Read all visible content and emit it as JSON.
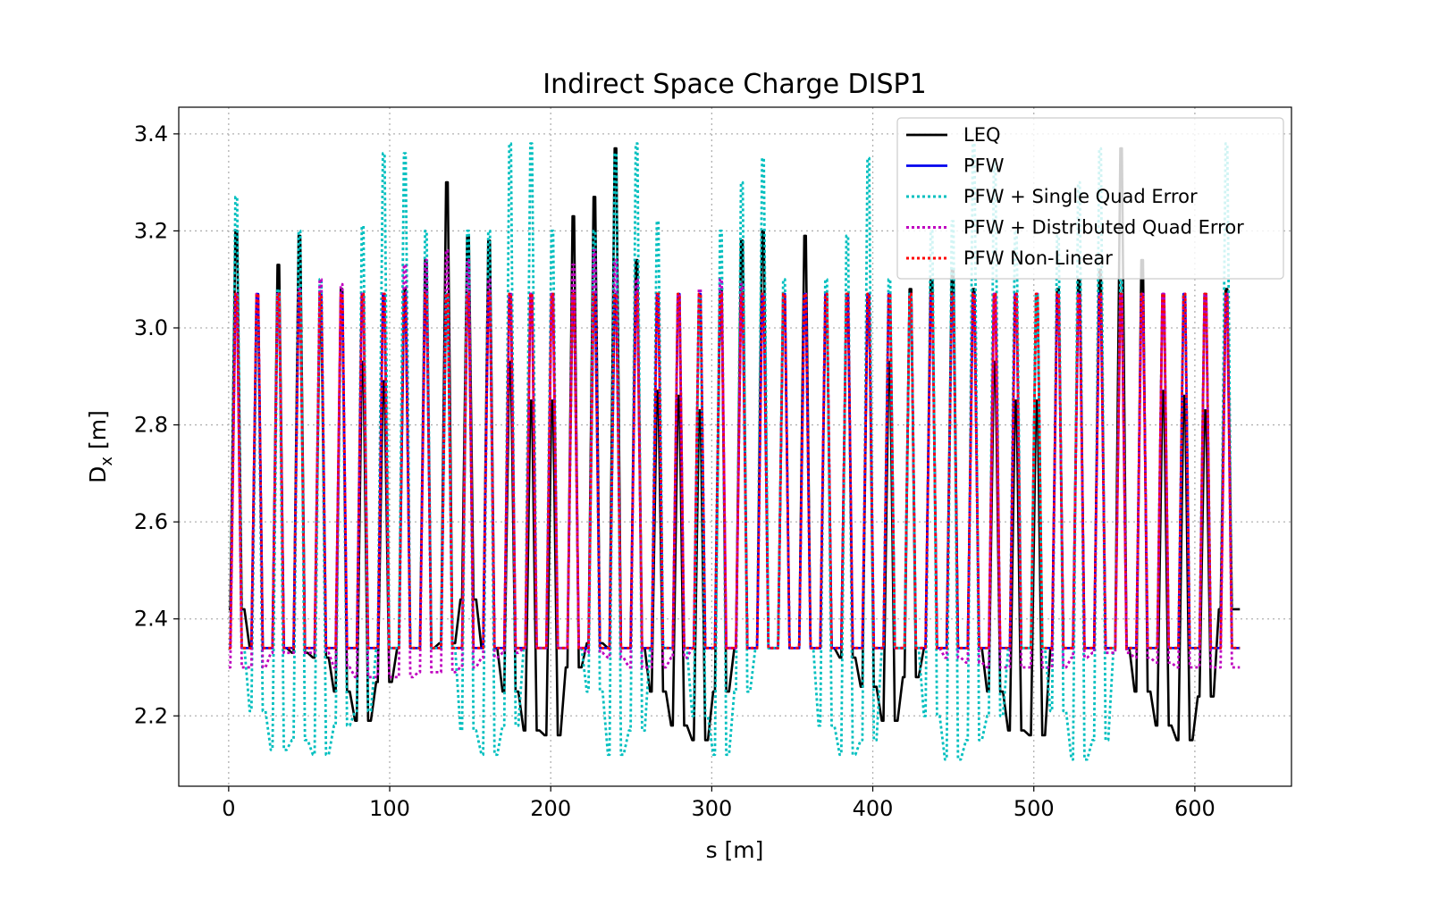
{
  "chart_data": {
    "type": "line",
    "title": "Indirect Space Charge DISP1",
    "xlabel": "s [m]",
    "ylabel_main": "D",
    "ylabel_sub": "x",
    "ylabel_unit": "[m]",
    "xlim": [
      -31,
      660
    ],
    "ylim": [
      2.055,
      3.455
    ],
    "xticks": [
      0,
      100,
      200,
      300,
      400,
      500,
      600
    ],
    "yticks": [
      2.2,
      2.4,
      2.6,
      2.8,
      3.0,
      3.2,
      3.4
    ],
    "ytick_labels": [
      "2.2",
      "2.4",
      "2.6",
      "2.8",
      "3.0",
      "3.2",
      "3.4"
    ],
    "grid": true,
    "legend_position": "top-right",
    "s_max": 628,
    "n_cells": 48,
    "series": [
      {
        "name": "LEQ",
        "color": "#000000",
        "dash": "solid",
        "peak_max": [
          3.2,
          3.05,
          3.13,
          3.19,
          3.02,
          3.08,
          2.93,
          2.89,
          3.08,
          3.14,
          3.3,
          3.19,
          3.18,
          2.93,
          2.85,
          2.85,
          3.23,
          3.27,
          3.37,
          3.14,
          2.87,
          2.86,
          2.83,
          3.08,
          3.18,
          3.2,
          3.07,
          3.19,
          3.04,
          3.07,
          3.07,
          2.93,
          3.08,
          3.1,
          3.12,
          3.08,
          2.93,
          2.85,
          2.85,
          3.08,
          3.1,
          3.12,
          3.37,
          3.14,
          2.87,
          2.86,
          2.83,
          3.08
        ],
        "trough_min": [
          2.42,
          2.34,
          2.34,
          2.33,
          2.32,
          2.25,
          2.19,
          2.27,
          2.34,
          2.34,
          2.35,
          2.44,
          2.34,
          2.25,
          2.17,
          2.16,
          2.3,
          2.35,
          2.34,
          2.34,
          2.25,
          2.18,
          2.15,
          2.25,
          2.34,
          2.34,
          2.34,
          2.34,
          2.34,
          2.32,
          2.26,
          2.19,
          2.28,
          2.34,
          2.34,
          2.34,
          2.25,
          2.17,
          2.16,
          2.34,
          2.34,
          2.34,
          2.34,
          2.25,
          2.18,
          2.15,
          2.24,
          2.42
        ]
      },
      {
        "name": "PFW",
        "color": "#0000ee",
        "dash": "solid",
        "peak_max": [
          3.07,
          3.07,
          3.07,
          3.07,
          3.07,
          3.07,
          3.07,
          3.07,
          3.07,
          3.07,
          3.07,
          3.07,
          3.07,
          3.07,
          3.07,
          3.07,
          3.07,
          3.07,
          3.07,
          3.07,
          3.07,
          3.07,
          3.07,
          3.07,
          3.07,
          3.07,
          3.07,
          3.07,
          3.07,
          3.07,
          3.07,
          3.07,
          3.07,
          3.07,
          3.07,
          3.07,
          3.07,
          3.07,
          3.07,
          3.07,
          3.07,
          3.07,
          3.07,
          3.07,
          3.07,
          3.07,
          3.07,
          3.07
        ],
        "trough_min": [
          2.34,
          2.34,
          2.34,
          2.34,
          2.34,
          2.34,
          2.34,
          2.34,
          2.34,
          2.34,
          2.34,
          2.34,
          2.34,
          2.34,
          2.34,
          2.34,
          2.34,
          2.34,
          2.34,
          2.34,
          2.34,
          2.34,
          2.34,
          2.34,
          2.34,
          2.34,
          2.34,
          2.34,
          2.34,
          2.34,
          2.34,
          2.34,
          2.34,
          2.34,
          2.34,
          2.34,
          2.34,
          2.34,
          2.34,
          2.34,
          2.34,
          2.34,
          2.34,
          2.34,
          2.34,
          2.34,
          2.34,
          2.34
        ]
      },
      {
        "name": "PFW + Single Quad Error",
        "color": "#00bfbf",
        "dash": "dotted",
        "peak_max": [
          3.27,
          3.02,
          3.08,
          3.2,
          3.1,
          3.05,
          3.21,
          3.36,
          3.36,
          3.2,
          3.07,
          3.2,
          3.2,
          3.38,
          3.38,
          3.2,
          3.07,
          3.2,
          3.36,
          3.38,
          3.22,
          3.07,
          3.06,
          3.2,
          3.3,
          3.35,
          3.1,
          3.07,
          3.1,
          3.19,
          3.35,
          3.1,
          3.07,
          3.2,
          3.22,
          3.38,
          3.34,
          3.2,
          3.07,
          3.19,
          3.3,
          3.37,
          3.1,
          3.07,
          3.07,
          3.07,
          3.07,
          3.38
        ],
        "trough_min": [
          2.34,
          2.21,
          2.13,
          2.15,
          2.12,
          2.18,
          2.21,
          2.34,
          2.34,
          2.34,
          2.34,
          2.17,
          2.12,
          2.18,
          2.34,
          2.34,
          2.34,
          2.25,
          2.12,
          2.17,
          2.34,
          2.34,
          2.2,
          2.12,
          2.25,
          2.34,
          2.34,
          2.34,
          2.18,
          2.12,
          2.15,
          2.34,
          2.34,
          2.2,
          2.11,
          2.15,
          2.2,
          2.34,
          2.34,
          2.21,
          2.11,
          2.15,
          2.34,
          2.34,
          2.34,
          2.34,
          2.34,
          2.34
        ]
      },
      {
        "name": "PFW + Distributed Quad Error",
        "color": "#bf00bf",
        "dash": "dotted",
        "peak_max": [
          3.07,
          3.07,
          3.07,
          3.08,
          3.1,
          3.09,
          3.07,
          3.07,
          3.13,
          3.14,
          3.16,
          3.14,
          3.1,
          3.07,
          3.07,
          3.07,
          3.13,
          3.16,
          3.14,
          3.1,
          3.07,
          3.07,
          3.08,
          3.1,
          3.09,
          3.07,
          3.07,
          3.07,
          3.07,
          3.07,
          3.07,
          3.07,
          3.07,
          3.07,
          3.07,
          3.07,
          3.07,
          3.07,
          3.07,
          3.07,
          3.07,
          3.07,
          3.07,
          3.07,
          3.07,
          3.07,
          3.07,
          3.07
        ],
        "trough_min": [
          2.3,
          2.3,
          2.33,
          2.33,
          2.33,
          2.3,
          2.28,
          2.28,
          2.28,
          2.29,
          2.29,
          2.3,
          2.32,
          2.33,
          2.34,
          2.34,
          2.34,
          2.33,
          2.32,
          2.3,
          2.3,
          2.32,
          2.34,
          2.34,
          2.34,
          2.34,
          2.34,
          2.34,
          2.34,
          2.34,
          2.34,
          2.34,
          2.34,
          2.34,
          2.32,
          2.31,
          2.3,
          2.3,
          2.3,
          2.3,
          2.32,
          2.33,
          2.33,
          2.32,
          2.31,
          2.3,
          2.3,
          2.3
        ]
      },
      {
        "name": "PFW Non-Linear",
        "color": "#ff0000",
        "dash": "dotted",
        "peak_max": [
          3.07,
          3.07,
          3.07,
          3.07,
          3.07,
          3.07,
          3.07,
          3.07,
          3.07,
          3.07,
          3.07,
          3.07,
          3.07,
          3.07,
          3.07,
          3.07,
          3.07,
          3.07,
          3.07,
          3.07,
          3.07,
          3.07,
          3.07,
          3.07,
          3.07,
          3.07,
          3.07,
          3.07,
          3.07,
          3.07,
          3.07,
          3.07,
          3.07,
          3.07,
          3.07,
          3.07,
          3.07,
          3.07,
          3.07,
          3.07,
          3.07,
          3.07,
          3.07,
          3.07,
          3.07,
          3.07,
          3.07,
          3.07
        ],
        "trough_min": [
          2.34,
          2.34,
          2.34,
          2.34,
          2.34,
          2.34,
          2.34,
          2.34,
          2.34,
          2.34,
          2.34,
          2.34,
          2.34,
          2.34,
          2.34,
          2.34,
          2.34,
          2.34,
          2.34,
          2.34,
          2.34,
          2.34,
          2.34,
          2.34,
          2.34,
          2.34,
          2.34,
          2.34,
          2.34,
          2.34,
          2.34,
          2.34,
          2.34,
          2.34,
          2.34,
          2.34,
          2.34,
          2.34,
          2.34,
          2.34,
          2.34,
          2.34,
          2.34,
          2.34,
          2.34,
          2.34,
          2.34,
          2.34
        ]
      }
    ]
  }
}
